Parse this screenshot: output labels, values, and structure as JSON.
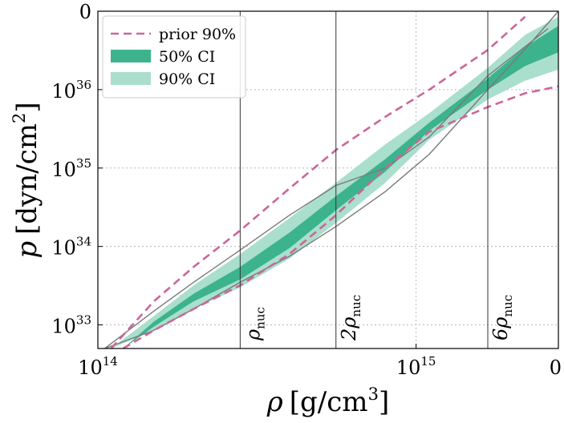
{
  "chart_data": {
    "type": "area",
    "title": "",
    "xlabel": {
      "main": "ρ",
      "unit_pre": "[g/cm",
      "unit_sup": "3",
      "unit_post": "]"
    },
    "ylabel": {
      "main": "p",
      "unit_pre": "[dyn/cm",
      "unit_sup": "2",
      "unit_post": "]"
    },
    "x_scale": "log",
    "y_scale": "log",
    "xlim": [
      100000000000000.0,
      2800000000000000.0
    ],
    "ylim": [
      5e+32,
      1e+37
    ],
    "x_ticks": [
      {
        "value": 100000000000000.0,
        "base": "10",
        "exp": "14"
      },
      {
        "value": 1000000000000000.0,
        "base": "10",
        "exp": "15"
      },
      {
        "value": 2800000000000000.0,
        "base": "0",
        "exp": ""
      }
    ],
    "y_ticks": [
      {
        "value": 1e+33,
        "base": "10",
        "exp": "33"
      },
      {
        "value": 1e+34,
        "base": "10",
        "exp": "34"
      },
      {
        "value": 1e+35,
        "base": "10",
        "exp": "35"
      },
      {
        "value": 1e+36,
        "base": "10",
        "exp": "36"
      },
      {
        "value": 1e+37,
        "base": "0",
        "exp": ""
      }
    ],
    "grid": true,
    "vlines": [
      {
        "value": 280000000000000.0,
        "label_main": "ρ",
        "label_sub": "nuc"
      },
      {
        "value": 560000000000000.0,
        "label_main": "2ρ",
        "label_sub": "nuc"
      },
      {
        "value": 1680000000000000.0,
        "label_main": "6ρ",
        "label_sub": "nuc"
      }
    ],
    "series": [
      {
        "name": "90% CI",
        "kind": "band",
        "color": "#a9dfcc",
        "x": [
          110000000000000.0,
          150000000000000.0,
          200000000000000.0,
          280000000000000.0,
          400000000000000.0,
          560000000000000.0,
          800000000000000.0,
          1100000000000000.0,
          1680000000000000.0,
          2200000000000000.0,
          2800000000000000.0
        ],
        "lower": [
          5e+32,
          8.5e+32,
          1.6e+33,
          3e+33,
          7e+33,
          2e+34,
          6.5e+34,
          2.3e+35,
          7.5e+35,
          1.3e+36,
          1.8e+36
        ],
        "upper": [
          5e+32,
          1.3e+33,
          3.2e+33,
          8e+33,
          2.3e+34,
          6.5e+34,
          2e+35,
          5e+35,
          1.9e+36,
          5e+36,
          8.5e+36
        ]
      },
      {
        "name": "50% CI",
        "kind": "band",
        "color": "#3cb38d",
        "x": [
          120000000000000.0,
          150000000000000.0,
          200000000000000.0,
          280000000000000.0,
          400000000000000.0,
          560000000000000.0,
          800000000000000.0,
          1100000000000000.0,
          1680000000000000.0,
          2200000000000000.0,
          2800000000000000.0
        ],
        "lower": [
          5e+32,
          9.5e+32,
          2e+33,
          3.8e+33,
          9.5e+33,
          2.9e+34,
          9e+34,
          3e+35,
          1e+36,
          2e+36,
          3e+36
        ],
        "upper": [
          5e+32,
          1.1e+33,
          2.5e+33,
          5.5e+33,
          1.5e+34,
          4.4e+34,
          1.3e+35,
          3.8e+35,
          1.4e+36,
          3.5e+36,
          6.5e+36
        ]
      },
      {
        "name": "prior 90%",
        "kind": "dashed-pair",
        "color": "#cc6699",
        "x_upper": [
          110000000000000.0,
          150000000000000.0,
          200000000000000.0,
          280000000000000.0,
          400000000000000.0,
          560000000000000.0,
          800000000000000.0,
          1100000000000000.0,
          1680000000000000.0,
          2200000000000000.0
        ],
        "upper": [
          5e+32,
          2e+33,
          5.5e+33,
          1.6e+34,
          5.5e+34,
          1.7e+35,
          4.5e+35,
          1e+36,
          3.2e+36,
          8.5e+36
        ],
        "x_lower": [
          120000000000000.0,
          150000000000000.0,
          200000000000000.0,
          280000000000000.0,
          400000000000000.0,
          560000000000000.0,
          800000000000000.0,
          1100000000000000.0,
          1680000000000000.0,
          2200000000000000.0,
          2800000000000000.0
        ],
        "lower": [
          5e+32,
          8.5e+32,
          1.6e+33,
          3.2e+33,
          8e+33,
          2.5e+34,
          1e+35,
          2.9e+35,
          6e+35,
          9e+35,
          1.1e+36
        ]
      }
    ],
    "grey_curves": [
      {
        "x": [
          105000000000000.0,
          150000000000000.0,
          200000000000000.0,
          280000000000000.0,
          400000000000000.0,
          560000000000000.0,
          800000000000000.0,
          1100000000000000.0,
          1680000000000000.0,
          2600000000000000.0
        ],
        "y": [
          5e+32,
          1.5e+33,
          3.5e+33,
          9e+33,
          2.5e+34,
          6e+34,
          1e+35,
          2.5e+35,
          1.5e+36,
          6e+36
        ]
      },
      {
        "x": [
          105000000000000.0,
          150000000000000.0,
          200000000000000.0,
          280000000000000.0,
          400000000000000.0,
          560000000000000.0,
          800000000000000.0,
          1100000000000000.0,
          1680000000000000.0,
          2300000000000000.0,
          2800000000000000.0
        ],
        "y": [
          5e+32,
          8.5e+32,
          1.6e+33,
          3.5e+33,
          7.5e+33,
          1.8e+34,
          5e+34,
          1.5e+35,
          1e+36,
          4e+36,
          1e+37
        ]
      }
    ],
    "legend": {
      "position": "top-left",
      "entries": [
        {
          "label": "prior 90%",
          "style": "dashed",
          "color": "#cc6699"
        },
        {
          "label": "50% CI",
          "style": "patch",
          "color": "#3cb38d"
        },
        {
          "label": "90% CI",
          "style": "patch",
          "color": "#a9dfcc"
        }
      ]
    }
  }
}
